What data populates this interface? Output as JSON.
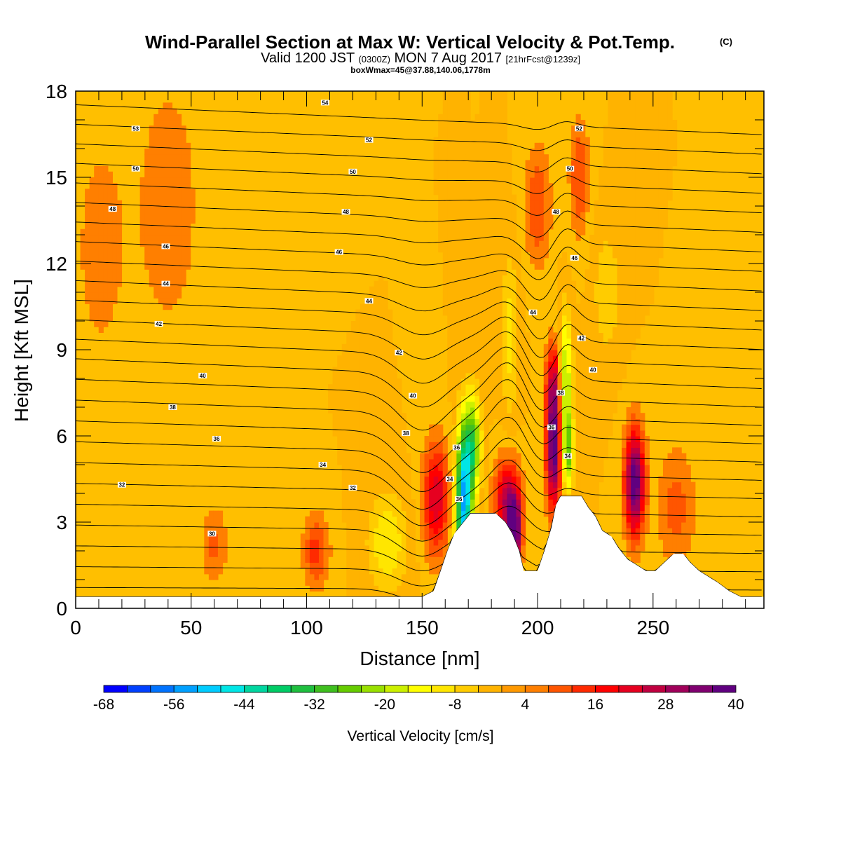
{
  "chart_data": {
    "type": "heatmap",
    "title": "Wind-Parallel Section at Max W: Vertical Velocity & Pot.Temp.",
    "title_mark": "(C)",
    "subtitle_parts": [
      "Valid 1200 JST",
      "(0300Z)",
      "MON 7 Aug 2017",
      "[21hrFcst@1239z]"
    ],
    "subtitle2": "boxWmax=45@37.88,140.06,1778m",
    "xlabel": "Distance [nm]",
    "ylabel": "Height [Kft MSL]",
    "xlim": [
      0,
      298
    ],
    "ylim": [
      0,
      18
    ],
    "x_ticks": [
      "0",
      "50",
      "100",
      "150",
      "200",
      "250"
    ],
    "x_tick_values": [
      0,
      50,
      100,
      150,
      200,
      250
    ],
    "y_ticks": [
      "0",
      "3",
      "6",
      "9",
      "12",
      "15",
      "18"
    ],
    "y_tick_values": [
      0,
      3,
      6,
      9,
      12,
      15,
      18
    ],
    "background_color": "#ffbf00",
    "terrain": [
      [
        0,
        0.4
      ],
      [
        5,
        0.4
      ],
      [
        10,
        0.4
      ],
      [
        20,
        0.4
      ],
      [
        30,
        0.4
      ],
      [
        40,
        0.4
      ],
      [
        50,
        0.4
      ],
      [
        60,
        0.4
      ],
      [
        70,
        0.4
      ],
      [
        80,
        0.4
      ],
      [
        90,
        0.4
      ],
      [
        100,
        0.4
      ],
      [
        110,
        0.4
      ],
      [
        120,
        0.4
      ],
      [
        130,
        0.4
      ],
      [
        140,
        0.4
      ],
      [
        150,
        0.4
      ],
      [
        155,
        0.6
      ],
      [
        158,
        1.3
      ],
      [
        161,
        2.0
      ],
      [
        164,
        2.6
      ],
      [
        167,
        2.9
      ],
      [
        171,
        3.3
      ],
      [
        176,
        3.3
      ],
      [
        182,
        3.3
      ],
      [
        186,
        3.0
      ],
      [
        189,
        2.6
      ],
      [
        192,
        2.0
      ],
      [
        194,
        1.3
      ],
      [
        198,
        1.3
      ],
      [
        200,
        1.3
      ],
      [
        203,
        2.0
      ],
      [
        206,
        2.8
      ],
      [
        208,
        3.6
      ],
      [
        210,
        3.9
      ],
      [
        215,
        3.9
      ],
      [
        219,
        3.9
      ],
      [
        222,
        3.5
      ],
      [
        225,
        3.2
      ],
      [
        228,
        2.7
      ],
      [
        232,
        2.5
      ],
      [
        235,
        2.1
      ],
      [
        239,
        1.7
      ],
      [
        243,
        1.5
      ],
      [
        247,
        1.3
      ],
      [
        251,
        1.3
      ],
      [
        255,
        1.6
      ],
      [
        259,
        1.9
      ],
      [
        263,
        1.9
      ],
      [
        266,
        1.6
      ],
      [
        270,
        1.3
      ],
      [
        274,
        1.1
      ],
      [
        278,
        0.9
      ],
      [
        283,
        0.6
      ],
      [
        288,
        0.4
      ],
      [
        292,
        0.4
      ],
      [
        298,
        0.4
      ]
    ],
    "w_features": [
      {
        "x": 156,
        "z": 3.8,
        "sx": 4,
        "sz": 1.4,
        "w": 24
      },
      {
        "x": 168,
        "z": 3.7,
        "sx": 2.5,
        "sz": 1.8,
        "w": -52
      },
      {
        "x": 172,
        "z": 5.7,
        "sx": 2.5,
        "sz": 1.2,
        "w": -28
      },
      {
        "x": 187,
        "z": 3.8,
        "sx": 4,
        "sz": 1.0,
        "w": 28
      },
      {
        "x": 190,
        "z": 2.6,
        "sx": 2,
        "sz": 0.8,
        "w": 40
      },
      {
        "x": 207,
        "z": 5.6,
        "sx": 2.3,
        "sz": 1.5,
        "w": 40
      },
      {
        "x": 207,
        "z": 8.0,
        "sx": 2.5,
        "sz": 1.0,
        "w": 18
      },
      {
        "x": 212,
        "z": 8.2,
        "sx": 2,
        "sz": 1.5,
        "w": -22
      },
      {
        "x": 213,
        "z": 5.5,
        "sx": 1.8,
        "sz": 1.0,
        "w": -26
      },
      {
        "x": 242,
        "z": 4.4,
        "sx": 3,
        "sz": 1.3,
        "w": 40
      },
      {
        "x": 200,
        "z": 14.0,
        "sx": 4,
        "sz": 1.5,
        "w": 12
      },
      {
        "x": 218,
        "z": 15.0,
        "sx": 3,
        "sz": 1.5,
        "w": 12
      },
      {
        "x": 104,
        "z": 2.0,
        "sx": 4,
        "sz": 0.9,
        "w": 14
      },
      {
        "x": 60,
        "z": 2.2,
        "sx": 4,
        "sz": 1.0,
        "w": 9
      },
      {
        "x": 135,
        "z": 2.3,
        "sx": 6,
        "sz": 1.2,
        "w": -12
      },
      {
        "x": 188,
        "z": 9.5,
        "sx": 2.5,
        "sz": 2.0,
        "w": -10
      },
      {
        "x": 230,
        "z": 11.0,
        "sx": 4,
        "sz": 1.5,
        "w": -8
      },
      {
        "x": 260,
        "z": 3.5,
        "sx": 6,
        "sz": 1.5,
        "w": 10
      },
      {
        "x": 40,
        "z": 14.0,
        "sx": 12,
        "sz": 4,
        "w": 6
      },
      {
        "x": 10,
        "z": 12.5,
        "sx": 8,
        "sz": 3,
        "w": 6
      }
    ],
    "theta_levels": [
      28,
      29,
      30,
      31,
      32,
      33,
      34,
      35,
      36,
      37,
      38,
      39,
      40,
      41,
      42,
      43,
      44,
      45,
      46,
      47,
      48,
      49,
      50,
      51,
      52,
      53,
      54
    ],
    "theta_labels": [
      {
        "text": "30",
        "x": 59,
        "z": 2.6
      },
      {
        "text": "32",
        "x": 20,
        "z": 4.3
      },
      {
        "text": "32",
        "x": 120,
        "z": 4.2
      },
      {
        "text": "34",
        "x": 107,
        "z": 5.0
      },
      {
        "text": "34",
        "x": 162,
        "z": 4.5
      },
      {
        "text": "34",
        "x": 213,
        "z": 5.3
      },
      {
        "text": "36",
        "x": 61,
        "z": 5.9
      },
      {
        "text": "36",
        "x": 166,
        "z": 3.8
      },
      {
        "text": "36",
        "x": 206,
        "z": 6.3
      },
      {
        "text": "36",
        "x": 165,
        "z": 5.6
      },
      {
        "text": "38",
        "x": 42,
        "z": 7.0
      },
      {
        "text": "38",
        "x": 143,
        "z": 6.1
      },
      {
        "text": "38",
        "x": 210,
        "z": 7.5
      },
      {
        "text": "40",
        "x": 55,
        "z": 8.1
      },
      {
        "text": "40",
        "x": 146,
        "z": 7.4
      },
      {
        "text": "40",
        "x": 224,
        "z": 8.3
      },
      {
        "text": "42",
        "x": 36,
        "z": 9.9
      },
      {
        "text": "42",
        "x": 140,
        "z": 8.9
      },
      {
        "text": "42",
        "x": 219,
        "z": 9.4
      },
      {
        "text": "44",
        "x": 39,
        "z": 11.3
      },
      {
        "text": "44",
        "x": 127,
        "z": 10.7
      },
      {
        "text": "44",
        "x": 198,
        "z": 10.3
      },
      {
        "text": "46",
        "x": 39,
        "z": 12.6
      },
      {
        "text": "46",
        "x": 114,
        "z": 12.4
      },
      {
        "text": "46",
        "x": 216,
        "z": 12.2
      },
      {
        "text": "48",
        "x": 16,
        "z": 13.9
      },
      {
        "text": "48",
        "x": 117,
        "z": 13.8
      },
      {
        "text": "48",
        "x": 208,
        "z": 13.8
      },
      {
        "text": "50",
        "x": 26,
        "z": 15.3
      },
      {
        "text": "50",
        "x": 120,
        "z": 15.2
      },
      {
        "text": "50",
        "x": 214,
        "z": 15.3
      },
      {
        "text": "52",
        "x": 127,
        "z": 16.3
      },
      {
        "text": "52",
        "x": 218,
        "z": 16.7
      },
      {
        "text": "53",
        "x": 26,
        "z": 16.7
      },
      {
        "text": "54",
        "x": 108,
        "z": 17.6
      }
    ],
    "colorbar": {
      "label": "Vertical Velocity [cm/s]",
      "tick_labels": [
        "-68",
        "-56",
        "-44",
        "-32",
        "-20",
        "-8",
        "4",
        "16",
        "28",
        "40"
      ],
      "min": -68,
      "step": 4,
      "colors": [
        "#0000ff",
        "#0040ff",
        "#0073ff",
        "#00a0ff",
        "#00ccff",
        "#00e6e6",
        "#00d6a0",
        "#00cc66",
        "#1fbf3f",
        "#3fbf1f",
        "#66cc00",
        "#99e000",
        "#ccf000",
        "#ffff00",
        "#ffe600",
        "#ffcc00",
        "#ffb300",
        "#ff9900",
        "#ff7f00",
        "#ff5500",
        "#ff2a00",
        "#ff0000",
        "#e60020",
        "#c00040",
        "#a0005a",
        "#800070",
        "#600080"
      ]
    }
  }
}
